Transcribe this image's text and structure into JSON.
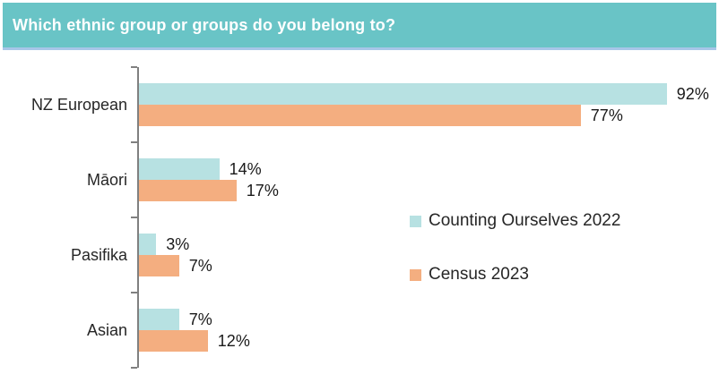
{
  "header": {
    "title": "Which ethnic group or groups do you belong to?"
  },
  "chart_data": {
    "type": "bar",
    "orientation": "horizontal",
    "title": "Which ethnic group or groups do you belong to?",
    "categories": [
      "NZ European",
      "Māori",
      "Pasifika",
      "Asian"
    ],
    "series": [
      {
        "name": "Counting Ourselves 2022",
        "color": "#B7E1E2",
        "values": [
          92,
          14,
          3,
          7
        ],
        "labels": [
          "92%",
          "14%",
          "3%",
          "7%"
        ]
      },
      {
        "name": "Census 2023",
        "color": "#F4AE80",
        "values": [
          77,
          17,
          7,
          12
        ],
        "labels": [
          "77%",
          "17%",
          "7%",
          "12%"
        ]
      }
    ],
    "value_suffix": "%",
    "xlim": [
      0,
      100
    ],
    "grid": false,
    "axis_color": "#808080",
    "legend_position": "center-right"
  },
  "colors": {
    "banner_bg": "#69C4C6",
    "banner_underline": "#A7C6E8",
    "text": "#262626"
  }
}
